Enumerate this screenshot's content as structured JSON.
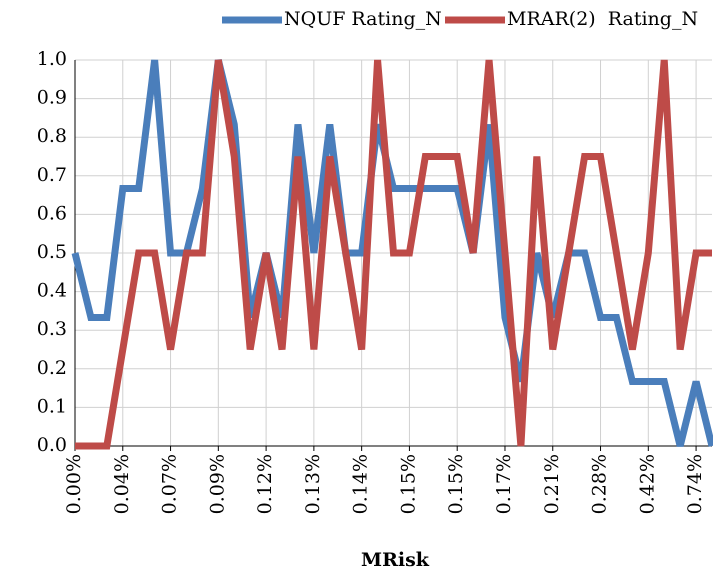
{
  "chart_data": {
    "type": "line",
    "x_label": "MRisk",
    "categories": [
      "0.00%",
      null,
      null,
      "0.04%",
      null,
      null,
      "0.07%",
      null,
      null,
      "0.09%",
      null,
      null,
      "0.12%",
      null,
      null,
      "0.13%",
      null,
      null,
      "0.14%",
      null,
      null,
      "0.15%",
      null,
      null,
      "0.15%",
      null,
      null,
      "0.17%",
      null,
      null,
      "0.21%",
      null,
      null,
      "0.28%",
      null,
      null,
      "0.42%",
      null,
      null,
      "0.74%",
      null
    ],
    "series": [
      {
        "name": "NQUF Rating_N",
        "color": "#4a7ebb",
        "values": [
          0.5,
          0.333,
          0.333,
          0.667,
          0.667,
          1.0,
          0.5,
          0.5,
          0.667,
          1.0,
          0.833,
          0.333,
          0.5,
          0.333,
          0.833,
          0.5,
          0.833,
          0.5,
          0.5,
          0.833,
          0.667,
          0.667,
          0.667,
          0.667,
          0.667,
          0.5,
          0.833,
          0.333,
          0.167,
          0.5,
          0.333,
          0.5,
          0.5,
          0.333,
          0.333,
          0.167,
          0.167,
          0.167,
          0,
          0.167,
          0
        ]
      },
      {
        "name": "MRAR(2)  Rating_N",
        "color": "#be4b48",
        "values": [
          0,
          0,
          0,
          0.25,
          0.5,
          0.5,
          0.25,
          0.5,
          0.5,
          1.0,
          0.75,
          0.25,
          0.5,
          0.25,
          0.75,
          0.25,
          0.75,
          0.5,
          0.25,
          1.0,
          0.5,
          0.5,
          0.75,
          0.75,
          0.75,
          0.5,
          1.0,
          0.5,
          0,
          0.75,
          0.25,
          0.5,
          0.75,
          0.75,
          0.5,
          0.25,
          0.5,
          1.0,
          0.25,
          0.5,
          0.5
        ]
      }
    ],
    "ylim": [
      0,
      1
    ],
    "yticks": [
      {
        "value": 0,
        "label": "0.0"
      },
      0.1,
      0.2,
      0.3,
      0.4,
      0.5,
      0.6,
      0.7,
      0.8,
      0.9,
      {
        "value": 1,
        "label": "1.0"
      }
    ],
    "grid": true,
    "legend": "top"
  }
}
